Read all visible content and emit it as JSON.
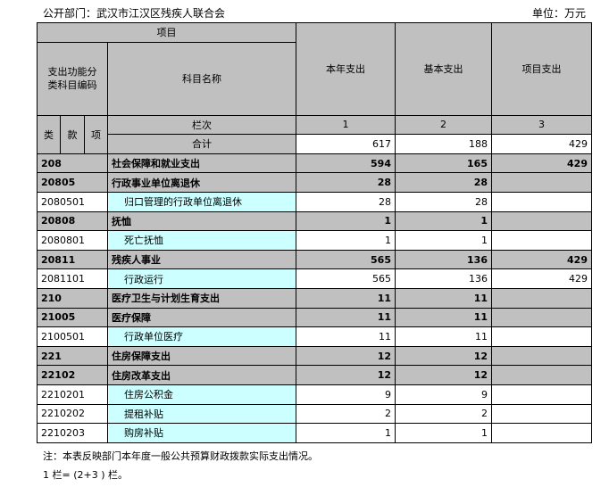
{
  "header": {
    "department": "公开部门：武汉市江汉区残疾人联合会",
    "unit": "单位：万元"
  },
  "table": {
    "h_project": "项目",
    "h_code": "支出功能分类科目编码",
    "h_name": "科目名称",
    "h_c1": "本年支出",
    "h_c2": "基本支出",
    "h_c3": "项目支出",
    "h_lei": "类",
    "h_kuan": "款",
    "h_xiang": "项",
    "h_lanci": "栏次",
    "n1": "1",
    "n2": "2",
    "n3": "3",
    "total_label": "合计",
    "total": [
      "617",
      "188",
      "429"
    ],
    "rows": [
      {
        "code": "208",
        "name": "社会保障和就业支出",
        "v1": "594",
        "v2": "165",
        "v3": "429",
        "bold": true
      },
      {
        "code": "20805",
        "name": "行政事业单位离退休",
        "v1": "28",
        "v2": "28",
        "v3": "",
        "bold": true
      },
      {
        "code": "2080501",
        "name": "归口管理的行政单位离退休",
        "v1": "28",
        "v2": "28",
        "v3": "",
        "bold": false
      },
      {
        "code": "20808",
        "name": "抚恤",
        "v1": "1",
        "v2": "1",
        "v3": "",
        "bold": true
      },
      {
        "code": "2080801",
        "name": "死亡抚恤",
        "v1": "1",
        "v2": "1",
        "v3": "",
        "bold": false
      },
      {
        "code": "20811",
        "name": "残疾人事业",
        "v1": "565",
        "v2": "136",
        "v3": "429",
        "bold": true
      },
      {
        "code": "2081101",
        "name": "行政运行",
        "v1": "565",
        "v2": "136",
        "v3": "429",
        "bold": false
      },
      {
        "code": "210",
        "name": "医疗卫生与计划生育支出",
        "v1": "11",
        "v2": "11",
        "v3": "",
        "bold": true
      },
      {
        "code": "21005",
        "name": "医疗保障",
        "v1": "11",
        "v2": "11",
        "v3": "",
        "bold": true
      },
      {
        "code": "2100501",
        "name": "行政单位医疗",
        "v1": "11",
        "v2": "11",
        "v3": "",
        "bold": false
      },
      {
        "code": "221",
        "name": "住房保障支出",
        "v1": "12",
        "v2": "12",
        "v3": "",
        "bold": true
      },
      {
        "code": "22102",
        "name": "住房改革支出",
        "v1": "12",
        "v2": "12",
        "v3": "",
        "bold": true
      },
      {
        "code": "2210201",
        "name": "住房公积金",
        "v1": "9",
        "v2": "9",
        "v3": "",
        "bold": false
      },
      {
        "code": "2210202",
        "name": "提租补贴",
        "v1": "2",
        "v2": "2",
        "v3": "",
        "bold": false
      },
      {
        "code": "2210203",
        "name": "购房补贴",
        "v1": "1",
        "v2": "1",
        "v3": "",
        "bold": false
      }
    ]
  },
  "notes": {
    "note1": "注：本表反映部门本年度一般公共预算财政拨款实际支出情况。",
    "note2": "1 栏= (2+3 ) 栏。"
  }
}
